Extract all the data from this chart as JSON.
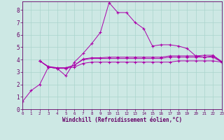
{
  "xlabel": "Windchill (Refroidissement éolien,°C)",
  "background_color": "#cde8e4",
  "grid_color": "#aad4cc",
  "line_color": "#aa00aa",
  "x_ticks": [
    0,
    1,
    2,
    3,
    4,
    5,
    6,
    7,
    8,
    9,
    10,
    11,
    12,
    13,
    14,
    15,
    16,
    17,
    18,
    19,
    20,
    21,
    22,
    23
  ],
  "y_ticks": [
    0,
    1,
    2,
    3,
    4,
    5,
    6,
    7,
    8
  ],
  "xlim": [
    0,
    23
  ],
  "ylim": [
    0,
    8.7
  ],
  "series1_x": [
    0,
    1,
    2,
    3,
    4,
    5,
    6,
    7,
    8,
    9,
    10,
    11,
    12,
    13,
    14,
    15,
    16,
    17,
    18,
    19,
    20,
    21,
    22,
    23
  ],
  "series1_y": [
    0.6,
    1.5,
    2.0,
    3.4,
    3.3,
    2.7,
    3.8,
    4.5,
    5.3,
    6.2,
    8.6,
    7.8,
    7.8,
    7.0,
    6.5,
    5.1,
    5.2,
    5.2,
    5.1,
    4.9,
    4.3,
    4.2,
    4.3,
    3.8
  ],
  "series2_x": [
    2,
    3,
    4,
    5,
    6,
    7,
    8,
    9,
    10,
    11,
    12,
    13,
    14,
    15,
    16,
    17,
    18,
    19,
    20,
    21,
    22,
    23
  ],
  "series2_y": [
    3.9,
    3.4,
    3.3,
    3.3,
    3.55,
    4.0,
    4.1,
    4.1,
    4.1,
    4.1,
    4.1,
    4.1,
    4.1,
    4.1,
    4.1,
    4.2,
    4.2,
    4.2,
    4.2,
    4.2,
    4.2,
    3.8
  ],
  "series3_x": [
    2,
    3,
    4,
    5,
    6,
    7,
    8,
    9,
    10,
    11,
    12,
    13,
    14,
    15,
    16,
    17,
    18,
    19,
    20,
    21,
    22,
    23
  ],
  "series3_y": [
    3.9,
    3.4,
    3.3,
    3.3,
    3.4,
    3.7,
    3.8,
    3.8,
    3.8,
    3.8,
    3.8,
    3.8,
    3.8,
    3.8,
    3.8,
    3.8,
    3.9,
    3.9,
    3.9,
    3.9,
    3.9,
    3.8
  ],
  "series4_x": [
    2,
    3,
    4,
    5,
    6,
    7,
    8,
    9,
    10,
    11,
    12,
    13,
    14,
    15,
    16,
    17,
    18,
    19,
    20,
    21,
    22,
    23
  ],
  "series4_y": [
    3.9,
    3.45,
    3.35,
    3.35,
    3.55,
    4.05,
    4.15,
    4.15,
    4.2,
    4.2,
    4.2,
    4.2,
    4.2,
    4.2,
    4.2,
    4.3,
    4.3,
    4.3,
    4.3,
    4.35,
    4.35,
    3.85
  ],
  "figwidth": 3.2,
  "figheight": 2.0,
  "dpi": 100
}
